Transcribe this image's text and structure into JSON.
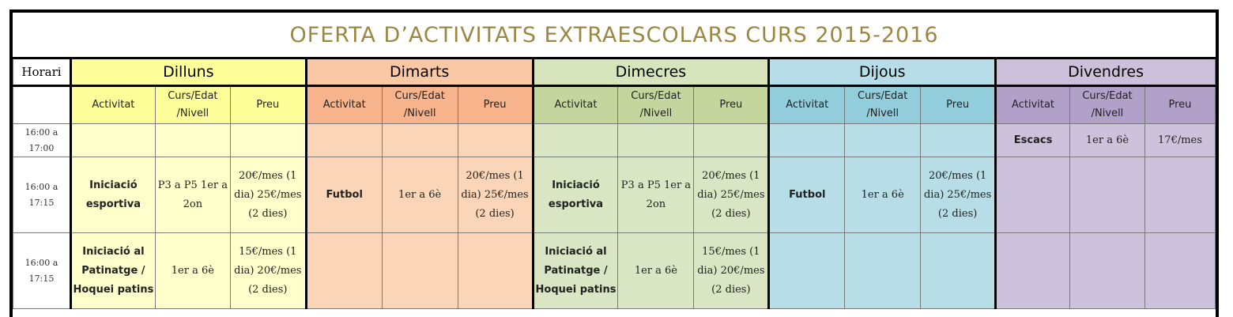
{
  "title": "OFERTA D’ACTIVITATS EXTRAESCOLARS CURS 2015-2016",
  "horari_header": "Horari",
  "days": [
    "Dilluns",
    "Dimarts",
    "Dimecres",
    "Dijous",
    "Divendres"
  ],
  "subheaders": {
    "activitat": "Activitat",
    "curs": "Curs/Edat /Nivell",
    "preu": "Preu"
  },
  "slots": [
    "16:00 a 17:00",
    "16:00 a 17:15",
    "16:00 a 17:15"
  ],
  "cells": {
    "r1_divendres": {
      "activitat": "Escacs",
      "curs": "1er a 6è",
      "preu": "17€/mes"
    },
    "r2_dilluns": {
      "activitat": "Iniciació esportiva",
      "curs": "P3 a P5 1er a 2on",
      "preu": "20€/mes (1 dia) 25€/mes (2 dies)"
    },
    "r2_dimarts": {
      "activitat": "Futbol",
      "curs": "1er a 6è",
      "preu": "20€/mes (1 dia) 25€/mes (2 dies)"
    },
    "r2_dimecres": {
      "activitat": "Iniciació esportiva",
      "curs": "P3 a P5 1er a 2on",
      "preu": "20€/mes (1 dia) 25€/mes (2 dies)"
    },
    "r2_dijous": {
      "activitat": "Futbol",
      "curs": "1er a 6è",
      "preu": "20€/mes (1 dia) 25€/mes (2 dies)"
    },
    "r3_dilluns": {
      "activitat": "Iniciació al Patinatge / Hoquei patins",
      "curs": "1er a 6è",
      "preu": "15€/mes (1 dia) 20€/mes (2 dies)"
    },
    "r3_dimecres": {
      "activitat": "Iniciació al Patinatge / Hoquei patins",
      "curs": "1er a 6è",
      "preu": "15€/mes (1 dia) 20€/mes (2 dies)"
    }
  }
}
